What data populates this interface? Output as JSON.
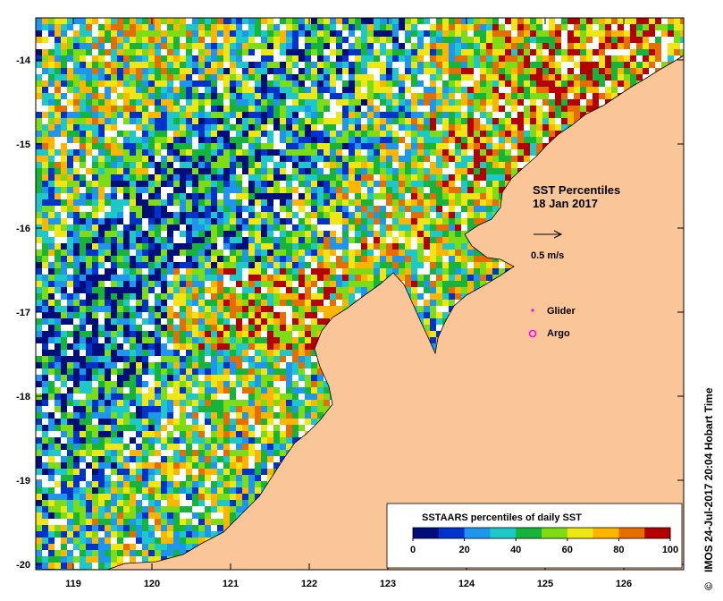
{
  "map": {
    "title_line1": "SST Percentiles",
    "title_line2": "18 Jan 2017",
    "vector_scale_label": "0.5 m/s",
    "legend": {
      "glider_label": "Glider",
      "argo_label": "Argo"
    },
    "credit": "IMOS 24-Jul-2017 20:04 Hobart Time",
    "copyright_symbol": "©",
    "lon_ticks": [
      "119",
      "120",
      "121",
      "122",
      "123",
      "124",
      "125",
      "126"
    ],
    "lat_ticks": [
      "-14",
      "-15",
      "-16",
      "-17",
      "-18",
      "-19",
      "-20"
    ],
    "colors": {
      "land": "#fbc697",
      "glider": "#ff00ff",
      "argo": "#ff00ff",
      "no_data": "#ffffff"
    }
  },
  "colorbar": {
    "title": "SSTAARS percentiles of daily SST",
    "tick_labels": [
      "0",
      "20",
      "40",
      "60",
      "80",
      "100"
    ],
    "colors": [
      "#000e7a",
      "#0033cc",
      "#1e96f0",
      "#1ec8c8",
      "#17b43c",
      "#7ddc14",
      "#f0e614",
      "#ffb400",
      "#e66e00",
      "#b40000"
    ]
  }
}
